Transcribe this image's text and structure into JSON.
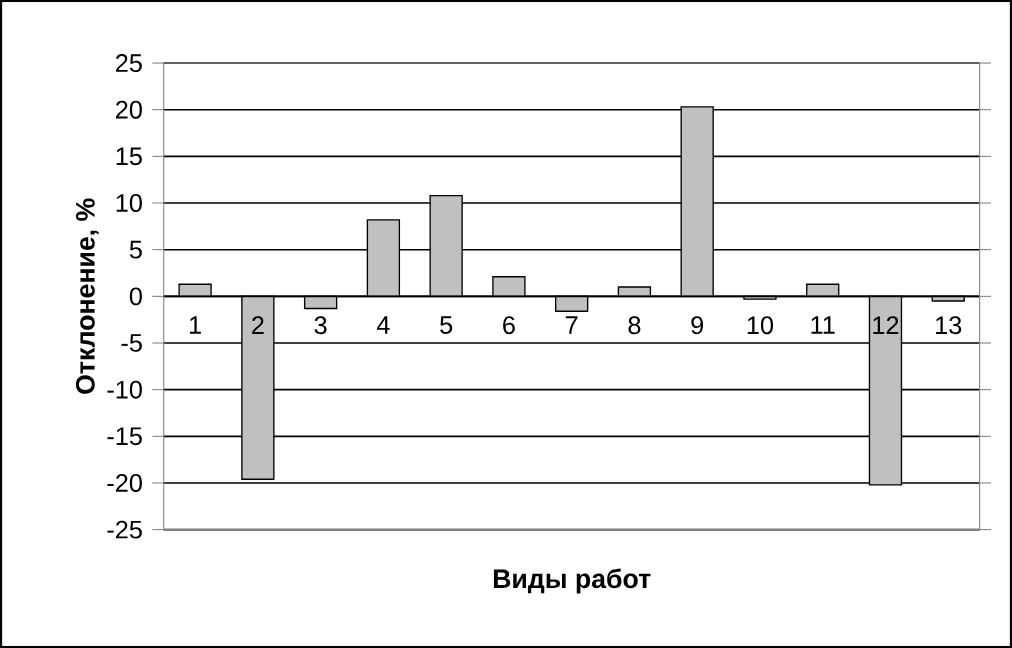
{
  "chart_data": {
    "type": "bar",
    "xlabel": "Виды работ",
    "ylabel": "Отклонение, %",
    "categories": [
      "1",
      "2",
      "3",
      "4",
      "5",
      "6",
      "7",
      "8",
      "9",
      "10",
      "11",
      "12",
      "13"
    ],
    "values": [
      1.3,
      -19.6,
      -1.3,
      8.2,
      10.8,
      2.1,
      -1.6,
      1.0,
      20.3,
      -0.3,
      1.3,
      -20.2,
      -0.5
    ],
    "color": "#c0c0c0",
    "ylim": [
      -25,
      25
    ],
    "yticks": [
      -25,
      -20,
      -15,
      -10,
      -5,
      0,
      5,
      10,
      15,
      20,
      25
    ],
    "grid": "y"
  }
}
